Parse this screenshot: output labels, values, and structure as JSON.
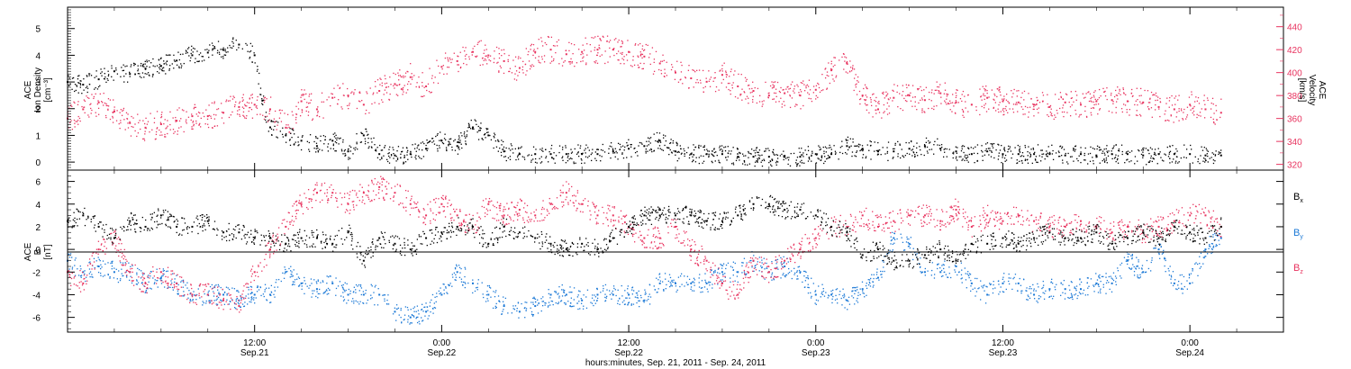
{
  "chart_data": [
    {
      "type": "scatter",
      "panel": "top",
      "xlim": [
        0,
        78
      ],
      "ylim": [
        -0.3,
        5.8
      ],
      "y2lim": [
        315,
        457
      ],
      "y_ticks": [
        0,
        1,
        2,
        3,
        4,
        5
      ],
      "y2_ticks": [
        320,
        340,
        360,
        380,
        400,
        420,
        440
      ],
      "ylabel": [
        "ACE",
        "Ion Density",
        "[cm⁻³]"
      ],
      "y2label": [
        "ACE",
        "Velocity",
        "[km/s]"
      ],
      "series": [
        {
          "axis": "left",
          "color": "#000000",
          "x": [
            0,
            1,
            2,
            3,
            4,
            5,
            6,
            7,
            8,
            9,
            10,
            11,
            12,
            12.5,
            13,
            14,
            15,
            16,
            17,
            18,
            19,
            20,
            21,
            22,
            23,
            24,
            25,
            26,
            27,
            28,
            29,
            30,
            31,
            32,
            33,
            34,
            35,
            36,
            37,
            38,
            39,
            40,
            41,
            42,
            43,
            44,
            45,
            46,
            47,
            48,
            49,
            50,
            51,
            52,
            53,
            54,
            55,
            56,
            57,
            58,
            59,
            60,
            61,
            62,
            63,
            64,
            65,
            66,
            67,
            68,
            69,
            70,
            71,
            72,
            73,
            74
          ],
          "values": [
            3.0,
            2.9,
            3.1,
            3.4,
            3.3,
            3.5,
            3.6,
            3.8,
            4.0,
            4.1,
            4.2,
            4.4,
            4.0,
            2.3,
            1.3,
            1.0,
            0.8,
            0.6,
            0.8,
            0.4,
            1.0,
            0.3,
            0.25,
            0.3,
            0.5,
            0.8,
            0.6,
            1.3,
            1.0,
            0.4,
            0.3,
            0.3,
            0.3,
            0.3,
            0.3,
            0.3,
            0.4,
            0.5,
            0.6,
            0.8,
            0.4,
            0.3,
            0.3,
            0.3,
            0.2,
            0.2,
            0.2,
            0.2,
            0.2,
            0.3,
            0.3,
            0.6,
            0.5,
            0.4,
            0.4,
            0.5,
            0.6,
            0.5,
            0.4,
            0.3,
            0.4,
            0.3,
            0.3,
            0.3,
            0.3,
            0.25,
            0.3,
            0.25,
            0.3,
            0.3,
            0.25,
            0.3,
            0.3,
            0.3,
            0.25,
            0.25
          ]
        },
        {
          "axis": "right",
          "color": "#e8335f",
          "x": [
            0,
            1,
            2,
            3,
            4,
            5,
            6,
            7,
            8,
            9,
            10,
            11,
            12,
            13,
            14,
            15,
            16,
            17,
            18,
            19,
            20,
            21,
            22,
            23,
            24,
            25,
            26,
            27,
            28,
            29,
            30,
            31,
            32,
            33,
            34,
            35,
            36,
            37,
            38,
            39,
            40,
            41,
            42,
            43,
            44,
            45,
            46,
            47,
            48,
            49,
            50,
            51,
            52,
            53,
            54,
            55,
            56,
            57,
            58,
            59,
            60,
            61,
            62,
            63,
            64,
            65,
            66,
            67,
            68,
            69,
            70,
            71,
            72,
            73,
            74
          ],
          "values": [
            360,
            368,
            374,
            366,
            356,
            352,
            355,
            358,
            362,
            362,
            365,
            370,
            372,
            368,
            352,
            375,
            368,
            378,
            380,
            372,
            384,
            390,
            396,
            388,
            405,
            410,
            418,
            415,
            410,
            404,
            418,
            420,
            416,
            418,
            420,
            420,
            418,
            414,
            408,
            400,
            395,
            392,
            398,
            388,
            384,
            380,
            382,
            380,
            385,
            402,
            408,
            380,
            368,
            378,
            380,
            376,
            382,
            374,
            372,
            378,
            375,
            374,
            372,
            370,
            374,
            372,
            375,
            376,
            375,
            374,
            370,
            368,
            372,
            368,
            365
          ]
        }
      ]
    },
    {
      "type": "scatter",
      "panel": "bottom",
      "xlim": [
        0,
        78
      ],
      "ylim": [
        -7.3,
        7
      ],
      "y_ticks": [
        -6,
        -4,
        -2,
        0,
        2,
        4,
        6
      ],
      "ylabel": [
        "ACE",
        "B",
        "[nT]"
      ],
      "series": [
        {
          "name": "Bx",
          "color": "#000000",
          "x": [
            0,
            1,
            2,
            3,
            4,
            5,
            6,
            7,
            8,
            9,
            10,
            11,
            12,
            13,
            14,
            15,
            16,
            17,
            18,
            19,
            20,
            21,
            22,
            23,
            24,
            25,
            26,
            27,
            28,
            29,
            30,
            31,
            32,
            33,
            34,
            35,
            36,
            37,
            38,
            39,
            40,
            41,
            42,
            43,
            44,
            45,
            46,
            47,
            48,
            49,
            50,
            51,
            52,
            53,
            54,
            55,
            56,
            57,
            58,
            59,
            60,
            61,
            62,
            63,
            64,
            65,
            66,
            67,
            68,
            69,
            70,
            71,
            72,
            73,
            74
          ],
          "values": [
            2.5,
            3,
            2,
            1,
            2.5,
            2,
            3,
            2,
            2,
            2.5,
            1.5,
            1.5,
            1,
            1,
            0.5,
            1,
            1,
            0.5,
            1.5,
            -1,
            1,
            0.5,
            0,
            1,
            1.5,
            2,
            2,
            0.5,
            2,
            1.5,
            1,
            0.5,
            0,
            0.5,
            0,
            1,
            2,
            3,
            3,
            3,
            3,
            2.5,
            2.5,
            3,
            4,
            4,
            3.5,
            3.5,
            3,
            2,
            1.5,
            -0.5,
            0,
            -1,
            -1,
            -0.5,
            0,
            -1,
            0.5,
            0.5,
            1,
            0.5,
            1,
            1.5,
            1,
            1,
            1.5,
            0.5,
            1,
            1.5,
            1,
            2,
            1.5,
            1,
            2
          ]
        },
        {
          "name": "By",
          "color": "#1a78d6",
          "x": [
            0,
            1,
            2,
            3,
            4,
            5,
            6,
            7,
            8,
            9,
            10,
            11,
            12,
            13,
            14,
            15,
            16,
            17,
            18,
            19,
            20,
            21,
            22,
            23,
            24,
            25,
            26,
            27,
            28,
            29,
            30,
            31,
            32,
            33,
            34,
            35,
            36,
            37,
            38,
            39,
            40,
            41,
            42,
            43,
            44,
            45,
            46,
            47,
            48,
            49,
            50,
            51,
            52,
            53,
            54,
            55,
            56,
            57,
            58,
            59,
            60,
            61,
            62,
            63,
            64,
            65,
            66,
            67,
            68,
            69,
            70,
            71,
            72,
            73,
            74
          ],
          "values": [
            -1,
            -2,
            -1.5,
            -2,
            -2,
            -3,
            -2.5,
            -3,
            -4,
            -4,
            -4,
            -4.5,
            -4,
            -4,
            -2,
            -3,
            -3.5,
            -3,
            -4,
            -4,
            -4,
            -5.5,
            -6,
            -5.5,
            -4,
            -2,
            -3,
            -4,
            -5,
            -5.5,
            -5,
            -4,
            -4,
            -4.5,
            -4,
            -4,
            -4,
            -4.5,
            -3,
            -3,
            -3,
            -3,
            -2,
            -2,
            -1,
            -2,
            -1.5,
            -2,
            -4,
            -4,
            -4.5,
            -3.5,
            -2.5,
            1,
            0.5,
            -2,
            -2,
            -1.5,
            -3,
            -4,
            -3,
            -3,
            -4,
            -3.5,
            -3.5,
            -3.5,
            -3,
            -3,
            -1,
            -2,
            0,
            -3,
            -3,
            0,
            1
          ]
        },
        {
          "name": "Bz",
          "color": "#e8335f",
          "x": [
            0,
            1,
            2,
            3,
            4,
            5,
            6,
            7,
            8,
            9,
            10,
            11,
            12,
            13,
            14,
            15,
            16,
            17,
            18,
            19,
            20,
            21,
            22,
            23,
            24,
            25,
            26,
            27,
            28,
            29,
            30,
            31,
            32,
            33,
            34,
            35,
            36,
            37,
            38,
            39,
            40,
            41,
            42,
            43,
            44,
            45,
            46,
            47,
            48,
            49,
            50,
            51,
            52,
            53,
            54,
            55,
            56,
            57,
            58,
            59,
            60,
            61,
            62,
            63,
            64,
            65,
            66,
            67,
            68,
            69,
            70,
            71,
            72,
            73,
            74
          ],
          "values": [
            -2,
            -3,
            0,
            1,
            -2,
            -3,
            -2,
            -3,
            -4,
            -4,
            -4.5,
            -5,
            -2,
            0,
            2,
            4,
            5,
            5,
            4,
            5,
            5.5,
            5,
            4,
            3,
            4,
            3,
            2,
            4,
            3,
            3.5,
            3,
            4,
            5,
            4,
            3,
            3,
            2,
            1,
            1,
            2,
            0,
            -1,
            -3,
            -4,
            -1,
            -2,
            -1,
            0,
            1,
            2,
            2,
            3,
            2,
            2.5,
            3,
            3,
            2.5,
            3.5,
            2,
            3,
            2.5,
            3,
            2.5,
            2,
            2,
            2.5,
            2,
            1.5,
            2,
            1.5,
            2,
            2.5,
            3,
            3,
            2
          ]
        }
      ]
    }
  ],
  "x_axis": {
    "ticks": [
      {
        "t": 12,
        "time": "12:00",
        "date": "Sep.21"
      },
      {
        "t": 24,
        "time": "0:00",
        "date": "Sep.22"
      },
      {
        "t": 36,
        "time": "12:00",
        "date": "Sep.22"
      },
      {
        "t": 48,
        "time": "0:00",
        "date": "Sep.23"
      },
      {
        "t": 60,
        "time": "12:00",
        "date": "Sep.23"
      },
      {
        "t": 72,
        "time": "0:00",
        "date": "Sep.24"
      }
    ],
    "label": "hours:minutes, Sep. 21, 2011 - Sep. 24, 2011"
  },
  "legend": {
    "bx": {
      "base": "B",
      "sub": "x",
      "color": "#000000"
    },
    "by": {
      "base": "B",
      "sub": "y",
      "color": "#1a78d6"
    },
    "bz": {
      "base": "B",
      "sub": "z",
      "color": "#e8335f"
    }
  },
  "colors": {
    "density": "#000000",
    "velocity": "#e8335f",
    "bx": "#000000",
    "by": "#1a78d6",
    "bz": "#e8335f"
  }
}
